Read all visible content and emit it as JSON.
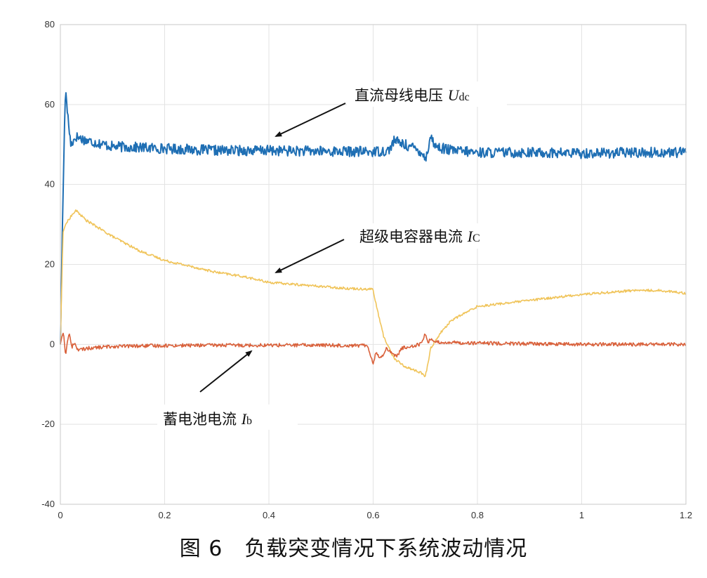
{
  "chart_data": {
    "type": "line",
    "xlim": [
      0,
      1.2
    ],
    "ylim": [
      -40,
      80
    ],
    "x_ticks": [
      "0",
      "0.2",
      "0.4",
      "0.6",
      "0.8",
      "1",
      "1.2"
    ],
    "y_ticks": [
      "-40",
      "-20",
      "0",
      "20",
      "40",
      "60",
      "80"
    ],
    "x_tick_values": [
      0,
      0.2,
      0.4,
      0.6,
      0.8,
      1.0,
      1.2
    ],
    "y_tick_values": [
      -40,
      -20,
      0,
      20,
      40,
      60,
      80
    ],
    "grid": true,
    "series": [
      {
        "name": "直流母线电压 Udc",
        "color": "#1f6fb4",
        "noise": 1.3,
        "x": [
          0,
          0.004,
          0.008,
          0.01,
          0.015,
          0.02,
          0.03,
          0.05,
          0.1,
          0.2,
          0.3,
          0.4,
          0.5,
          0.6,
          0.63,
          0.64,
          0.66,
          0.68,
          0.695,
          0.7,
          0.705,
          0.71,
          0.72,
          0.75,
          0.8,
          0.9,
          1.0,
          1.1,
          1.2
        ],
        "y": [
          0,
          30,
          55,
          64,
          56,
          50,
          52,
          51,
          49.5,
          49,
          48.5,
          48.5,
          48.3,
          48.2,
          48.5,
          51,
          50,
          49,
          48,
          46,
          49,
          52,
          49.5,
          48.5,
          48,
          48,
          47.8,
          48,
          48
        ]
      },
      {
        "name": "超级电容器电流 IC",
        "color": "#f0c45a",
        "noise": 0.3,
        "x": [
          0,
          0.005,
          0.01,
          0.02,
          0.03,
          0.05,
          0.1,
          0.15,
          0.2,
          0.25,
          0.3,
          0.35,
          0.4,
          0.45,
          0.5,
          0.55,
          0.6,
          0.602,
          0.62,
          0.64,
          0.66,
          0.68,
          0.69,
          0.7,
          0.705,
          0.71,
          0.72,
          0.73,
          0.75,
          0.8,
          0.9,
          1.0,
          1.1,
          1.15,
          1.2
        ],
        "y": [
          0,
          28,
          30,
          32,
          33.5,
          31,
          27,
          23.5,
          21,
          19.5,
          18,
          17,
          15.5,
          15,
          14.5,
          14,
          13.8,
          12,
          2,
          -3.5,
          -5.5,
          -6.5,
          -7,
          -8,
          -5,
          -1,
          1,
          3,
          6,
          9.5,
          11,
          12.5,
          13.5,
          13.5,
          12.8
        ]
      },
      {
        "name": "蓄电池电流 Ib",
        "color": "#d9603a",
        "noise": 0.45,
        "x": [
          0,
          0.003,
          0.006,
          0.01,
          0.014,
          0.018,
          0.022,
          0.026,
          0.035,
          0.05,
          0.1,
          0.2,
          0.3,
          0.4,
          0.5,
          0.59,
          0.6,
          0.605,
          0.615,
          0.625,
          0.635,
          0.645,
          0.655,
          0.67,
          0.69,
          0.7,
          0.705,
          0.712,
          0.72,
          0.74,
          0.8,
          1.0,
          1.2
        ],
        "y": [
          0,
          2,
          3,
          -3,
          1.5,
          2.5,
          -1,
          0.5,
          -1.5,
          -1,
          -0.5,
          -0.3,
          -0.2,
          -0.2,
          -0.2,
          -0.3,
          -5,
          -2,
          -3.5,
          -1,
          -2,
          -3,
          -1,
          -0.5,
          0,
          2.5,
          0.5,
          1.5,
          0.5,
          0.5,
          0.3,
          0,
          0
        ]
      }
    ]
  },
  "annotations": [
    {
      "label": "直流母线电压 ",
      "symbol": "U",
      "subscript": "dc"
    },
    {
      "label": "超级电容器电流 ",
      "symbol": "I",
      "subscript": "C"
    },
    {
      "label": "蓄电池电流 ",
      "symbol": "I",
      "subscript": "b"
    }
  ],
  "caption": "图 6　负载突变情况下系统波动情况"
}
